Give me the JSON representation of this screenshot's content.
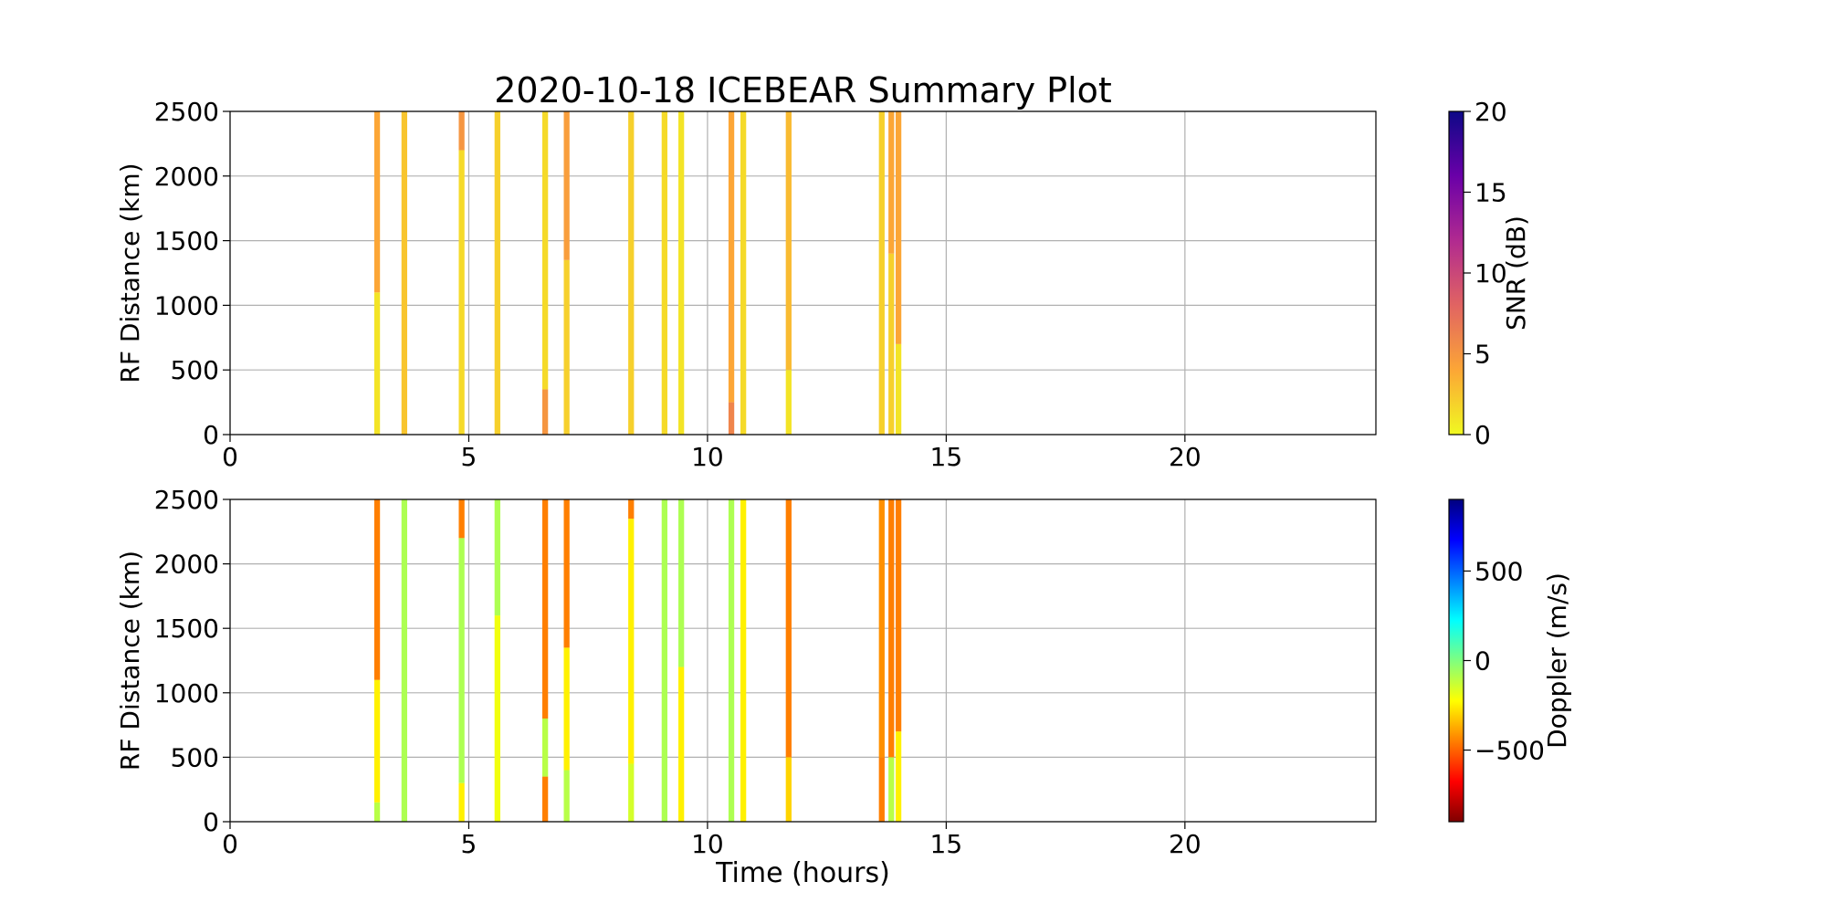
{
  "chart_data": [
    {
      "type": "strip",
      "title": "2020-10-18 ICEBEAR Summary Plot",
      "ylabel": "RF Distance (km)",
      "xlim": [
        0,
        24
      ],
      "xticks": [
        0,
        5,
        10,
        15,
        20
      ],
      "ylim": [
        0,
        2500
      ],
      "yticks": [
        0,
        500,
        1000,
        1500,
        2000,
        2500
      ],
      "grid": true,
      "width": 0.12,
      "colorbar": {
        "label": "SNR (dB)",
        "lim": [
          0,
          20
        ],
        "ticks": [
          0,
          5,
          10,
          15,
          20
        ],
        "colormap": [
          "#f0f921",
          "#fca636",
          "#e16462",
          "#b12a90",
          "#6a00a8",
          "#0d0887"
        ]
      },
      "strips": [
        {
          "x": 3.08,
          "segments": [
            [
              0,
              1100,
              1
            ],
            [
              1100,
              2500,
              4
            ]
          ]
        },
        {
          "x": 3.65,
          "segments": [
            [
              0,
              2500,
              2.5
            ]
          ]
        },
        {
          "x": 4.85,
          "segments": [
            [
              0,
              2200,
              1.5
            ],
            [
              2200,
              2500,
              5
            ]
          ]
        },
        {
          "x": 5.6,
          "segments": [
            [
              0,
              2500,
              2
            ]
          ]
        },
        {
          "x": 6.6,
          "segments": [
            [
              0,
              350,
              5
            ],
            [
              350,
              2500,
              1.5
            ]
          ]
        },
        {
          "x": 7.05,
          "segments": [
            [
              0,
              1350,
              2
            ],
            [
              1350,
              2500,
              4.5
            ]
          ]
        },
        {
          "x": 8.4,
          "segments": [
            [
              0,
              2500,
              2
            ]
          ]
        },
        {
          "x": 9.1,
          "segments": [
            [
              0,
              2500,
              1.5
            ]
          ]
        },
        {
          "x": 9.45,
          "segments": [
            [
              0,
              2500,
              1
            ]
          ]
        },
        {
          "x": 10.5,
          "segments": [
            [
              0,
              250,
              6
            ],
            [
              250,
              2500,
              4
            ]
          ]
        },
        {
          "x": 10.75,
          "segments": [
            [
              0,
              2500,
              1.5
            ]
          ]
        },
        {
          "x": 11.7,
          "segments": [
            [
              0,
              500,
              1
            ],
            [
              500,
              2500,
              3
            ]
          ]
        },
        {
          "x": 13.65,
          "segments": [
            [
              0,
              2500,
              2
            ]
          ]
        },
        {
          "x": 13.85,
          "segments": [
            [
              0,
              1400,
              2
            ],
            [
              1400,
              2500,
              4
            ]
          ]
        },
        {
          "x": 14.0,
          "segments": [
            [
              0,
              700,
              1
            ],
            [
              700,
              2500,
              4
            ]
          ]
        }
      ]
    },
    {
      "type": "strip",
      "ylabel": "RF Distance (km)",
      "xlabel": "Time (hours)",
      "xlim": [
        0,
        24
      ],
      "xticks": [
        0,
        5,
        10,
        15,
        20
      ],
      "ylim": [
        0,
        2500
      ],
      "yticks": [
        0,
        500,
        1000,
        1500,
        2000,
        2500
      ],
      "grid": true,
      "width": 0.12,
      "colorbar": {
        "label": "Doppler (m/s)",
        "lim": [
          -900,
          900
        ],
        "ticks": [
          {
            "value": -500,
            "label": "−500"
          },
          0,
          500
        ],
        "colormap": [
          "#7f0000",
          "#ff0000",
          "#ff7f00",
          "#ffff00",
          "#7fff7f",
          "#00ffff",
          "#007fff",
          "#0000ff",
          "#00007f"
        ]
      },
      "strips": [
        {
          "x": 3.08,
          "segments": [
            [
              0,
              150,
              -100
            ],
            [
              150,
              1100,
              -250
            ],
            [
              1100,
              2500,
              -450
            ]
          ]
        },
        {
          "x": 3.65,
          "segments": [
            [
              0,
              2500,
              -80
            ]
          ]
        },
        {
          "x": 4.85,
          "segments": [
            [
              0,
              300,
              -250
            ],
            [
              300,
              2200,
              -80
            ],
            [
              2200,
              2500,
              -450
            ]
          ]
        },
        {
          "x": 5.6,
          "segments": [
            [
              0,
              1600,
              -200
            ],
            [
              1600,
              2500,
              -80
            ]
          ]
        },
        {
          "x": 6.6,
          "segments": [
            [
              0,
              350,
              -450
            ],
            [
              350,
              800,
              -100
            ],
            [
              800,
              2500,
              -450
            ]
          ]
        },
        {
          "x": 7.05,
          "segments": [
            [
              0,
              400,
              -100
            ],
            [
              400,
              1350,
              -250
            ],
            [
              1350,
              2500,
              -450
            ]
          ]
        },
        {
          "x": 8.4,
          "segments": [
            [
              0,
              450,
              -150
            ],
            [
              450,
              2350,
              -250
            ],
            [
              2350,
              2500,
              -450
            ]
          ]
        },
        {
          "x": 9.1,
          "segments": [
            [
              0,
              2500,
              -80
            ]
          ]
        },
        {
          "x": 9.45,
          "segments": [
            [
              0,
              1200,
              -250
            ],
            [
              1200,
              2500,
              -80
            ]
          ]
        },
        {
          "x": 10.5,
          "segments": [
            [
              0,
              2500,
              -80
            ]
          ]
        },
        {
          "x": 10.75,
          "segments": [
            [
              0,
              2500,
              -250
            ]
          ]
        },
        {
          "x": 11.7,
          "segments": [
            [
              0,
              500,
              -300
            ],
            [
              500,
              2500,
              -450
            ]
          ]
        },
        {
          "x": 13.65,
          "segments": [
            [
              0,
              500,
              -450
            ],
            [
              500,
              2500,
              -420
            ]
          ]
        },
        {
          "x": 13.85,
          "segments": [
            [
              0,
              500,
              -100
            ],
            [
              500,
              2500,
              -450
            ]
          ]
        },
        {
          "x": 14.0,
          "segments": [
            [
              0,
              700,
              -250
            ],
            [
              700,
              2500,
              -450
            ]
          ]
        }
      ]
    }
  ]
}
